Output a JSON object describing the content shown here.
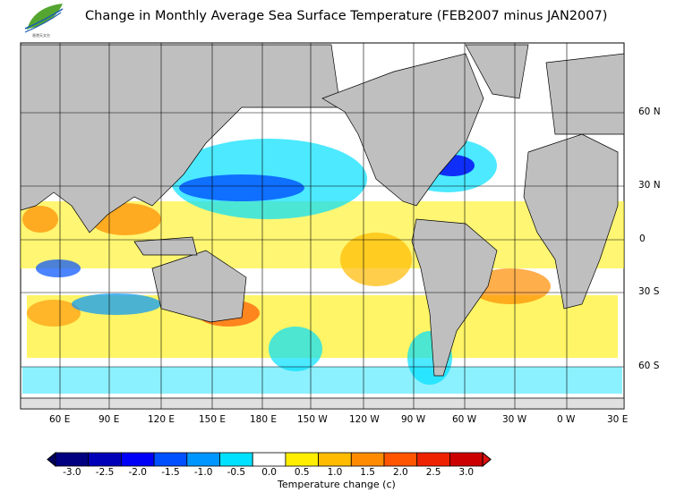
{
  "title": "Change in Monthly Average Sea Surface Temperature (FEB2007 minus JAN2007)",
  "logo": {
    "text": "HKO"
  },
  "lon_labels": [
    "60 E",
    "90 E",
    "120 E",
    "150 E",
    "180 E",
    "150 W",
    "120 W",
    "90 W",
    "60 W",
    "30 W",
    "0 W",
    "30 E"
  ],
  "lat_labels": [
    "60 N",
    "30 N",
    "0",
    "30 S",
    "60 S"
  ],
  "colorbar": {
    "title": "Temperature change  (c)",
    "ticks": [
      "-3.0",
      "-2.5",
      "-2.0",
      "-1.5",
      "-1.0",
      "-0.5",
      "0.0",
      "0.5",
      "1.0",
      "1.5",
      "2.0",
      "2.5",
      "3.0"
    ],
    "colors": [
      "#000080",
      "#0000b8",
      "#0000f8",
      "#0050ff",
      "#0096ff",
      "#00e0ff",
      "#ffffff",
      "#ffee00",
      "#ffbb00",
      "#ff8c00",
      "#ff5500",
      "#ee2200",
      "#cc0000"
    ],
    "under_color": "#000060",
    "over_color": "#dd1111"
  },
  "land_color": "#bfbfbf",
  "ice_color": "#e0e0e0"
}
